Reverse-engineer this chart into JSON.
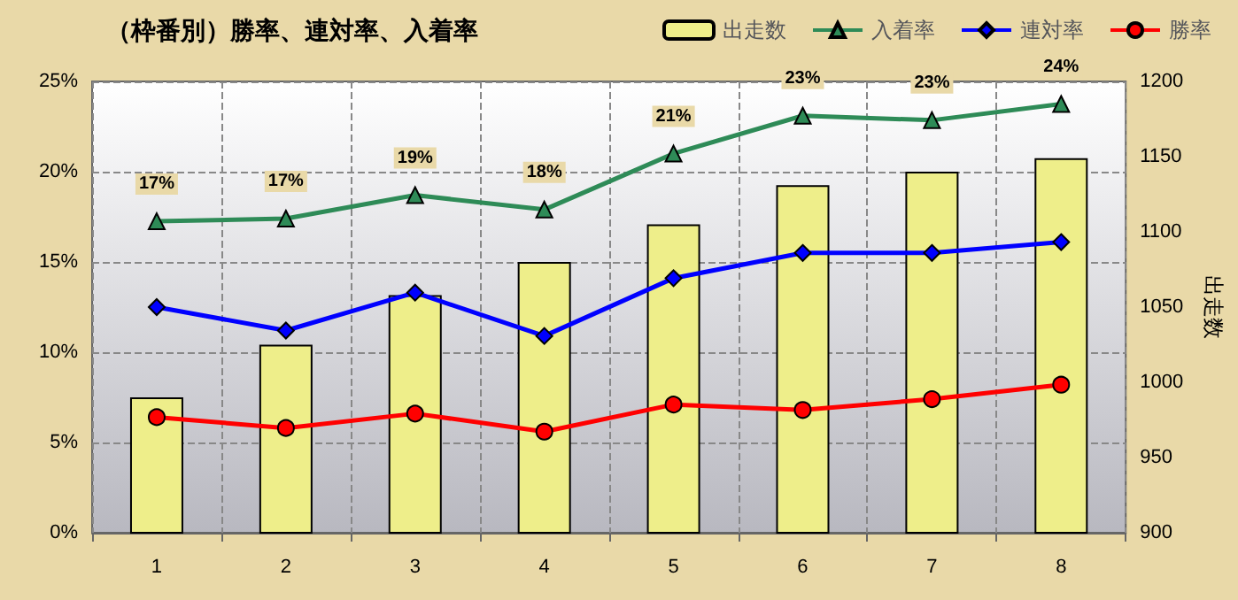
{
  "chart_data": {
    "type": "line",
    "title": "（枠番別）勝率、連対率、入着率",
    "y2label": "出走数",
    "categories": [
      "1",
      "2",
      "3",
      "4",
      "5",
      "6",
      "7",
      "8"
    ],
    "series": [
      {
        "name": "出走数",
        "type": "bar",
        "axis": "y2",
        "color": "#eeee8a",
        "values": [
          990,
          1025,
          1058,
          1080,
          1105,
          1131,
          1140,
          1149
        ]
      },
      {
        "name": "入着率",
        "color": "#2e8b57",
        "marker": "triangle",
        "values": [
          17.25,
          17.4,
          18.7,
          17.9,
          21.0,
          23.1,
          22.85,
          23.75
        ],
        "value_labels": [
          "17%",
          "17%",
          "19%",
          "18%",
          "21%",
          "23%",
          "23%",
          "24%"
        ]
      },
      {
        "name": "連対率",
        "color": "#0000ff",
        "marker": "diamond",
        "values": [
          12.5,
          11.2,
          13.3,
          10.9,
          14.1,
          15.5,
          15.5,
          16.1
        ]
      },
      {
        "name": "勝率",
        "color": "#ff0000",
        "marker": "circle",
        "values": [
          6.4,
          5.8,
          6.6,
          5.6,
          7.1,
          6.8,
          7.4,
          8.2
        ]
      }
    ],
    "ylim": [
      0,
      25
    ],
    "yticks": [
      {
        "value": 0,
        "label": "0%"
      },
      {
        "value": 5,
        "label": "5%"
      },
      {
        "value": 10,
        "label": "10%"
      },
      {
        "value": 15,
        "label": "15%"
      },
      {
        "value": 20,
        "label": "20%"
      },
      {
        "value": 25,
        "label": "25%"
      }
    ],
    "y2lim": [
      900,
      1200
    ],
    "y2ticks": [
      900,
      950,
      1000,
      1050,
      1100,
      1150,
      1200
    ],
    "grid": true,
    "legend": "top right"
  }
}
